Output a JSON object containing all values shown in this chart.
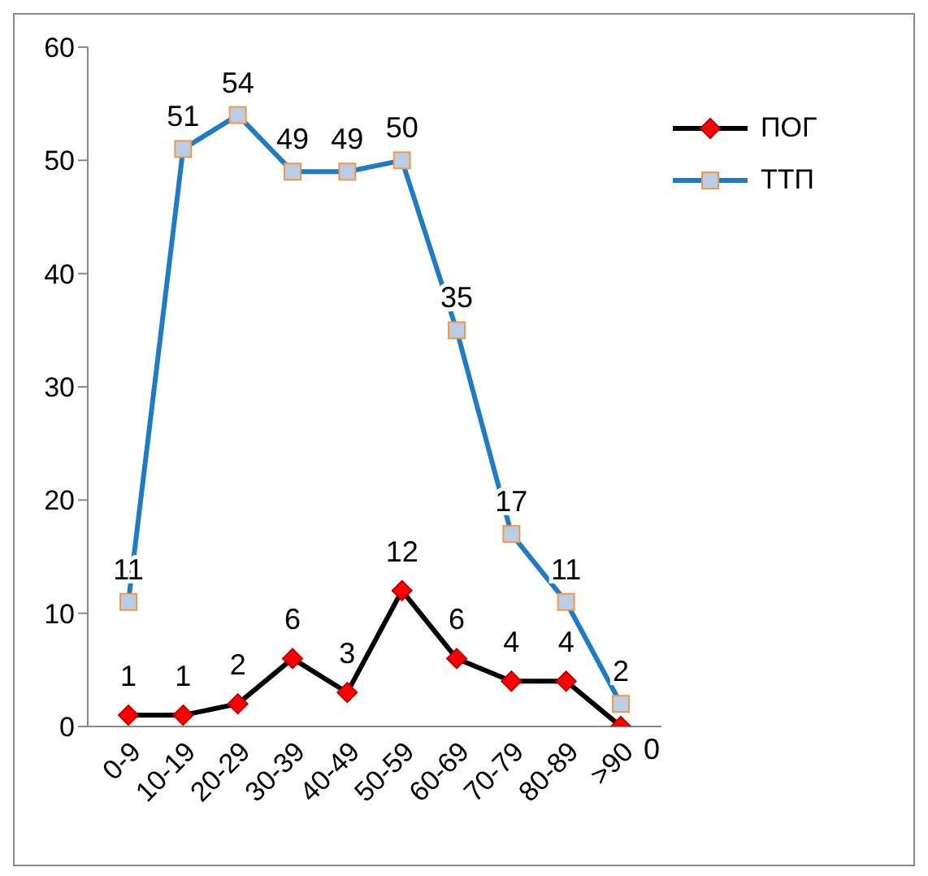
{
  "chart_data": {
    "type": "line",
    "categories": [
      "0-9",
      "10-19",
      "20-29",
      "30-39",
      "40-49",
      "50-59",
      "60-69",
      "70-79",
      "80-89",
      ">90"
    ],
    "series": [
      {
        "name": "ПОГ",
        "color": "#000000",
        "marker": "diamond",
        "values": [
          1,
          1,
          2,
          6,
          3,
          12,
          6,
          4,
          4,
          0
        ]
      },
      {
        "name": "ТТП",
        "color": "#1f7bc4",
        "marker": "square",
        "values": [
          11,
          51,
          54,
          49,
          49,
          50,
          35,
          17,
          11,
          2
        ]
      }
    ],
    "ylim": [
      0,
      60
    ],
    "yticks": [
      0,
      10,
      20,
      30,
      40,
      50,
      60
    ],
    "grid": false,
    "legend": "top right",
    "data_labels": true,
    "line_style": "solid"
  }
}
